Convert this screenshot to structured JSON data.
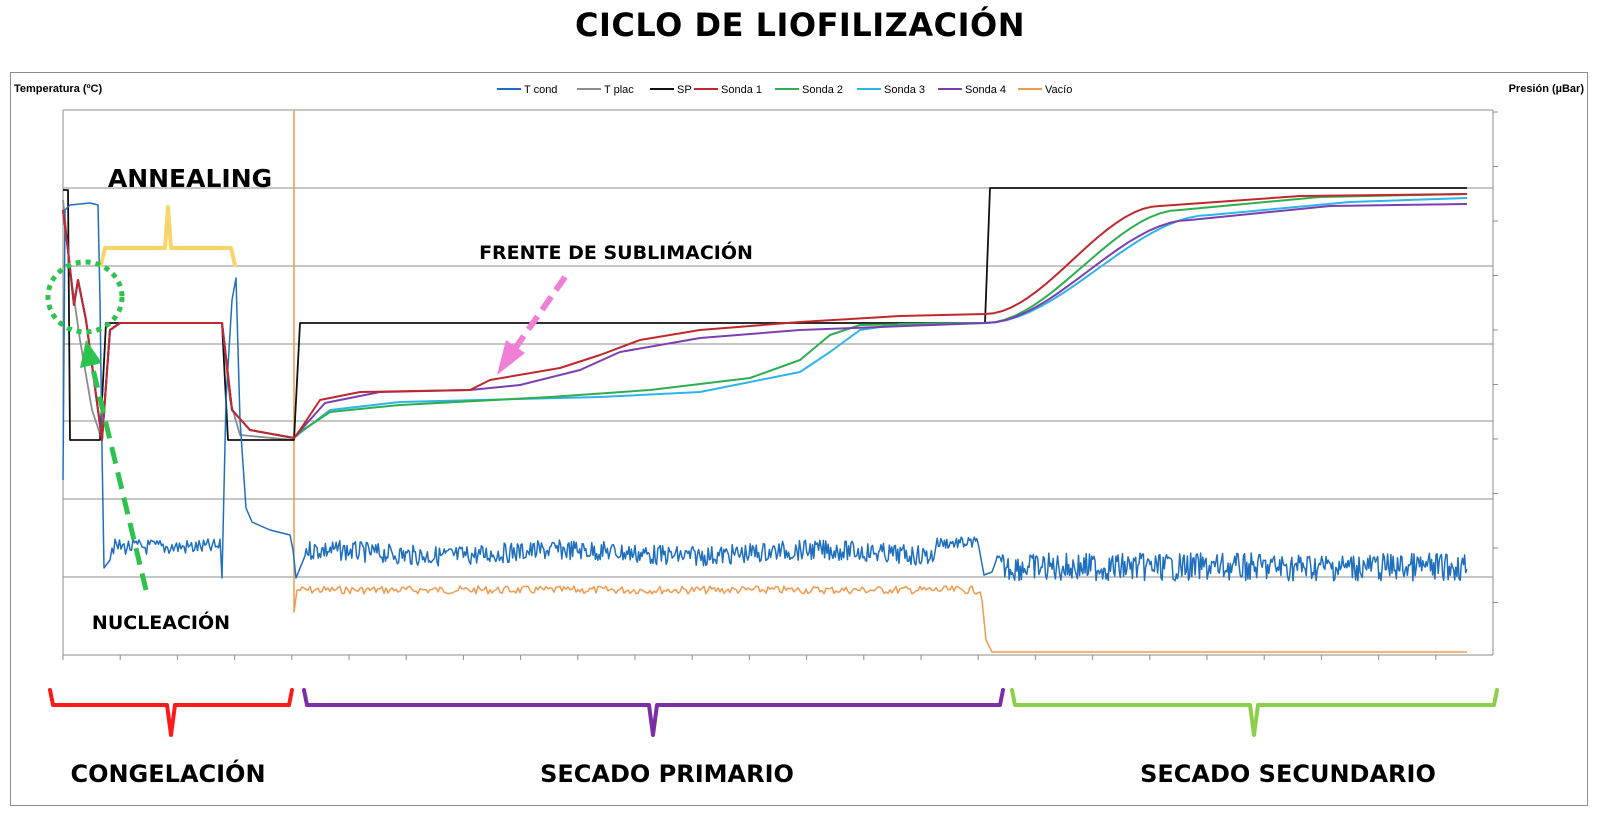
{
  "title": "CICLO DE LIOFILIZACIÓN",
  "chart_data": {
    "type": "line",
    "title": "CICLO DE LIOFILIZACIÓN",
    "ylabel_left": "Temperatura (ºC)",
    "ylabel_right": "Presión (µBar)",
    "grid": "horizontal",
    "legend_position": "top",
    "series": [
      {
        "name": "T cond",
        "color": "#1f6fbf"
      },
      {
        "name": "T plac",
        "color": "#8c8c8c"
      },
      {
        "name": "SP",
        "color": "#111111"
      },
      {
        "name": "Sonda 1",
        "color": "#c0282d"
      },
      {
        "name": "Sonda 2",
        "color": "#2eae4f"
      },
      {
        "name": "Sonda 3",
        "color": "#2fb4ea"
      },
      {
        "name": "Sonda 4",
        "color": "#7b3fb0"
      },
      {
        "name": "Vacío",
        "color": "#f39a4c"
      }
    ]
  },
  "annotations": {
    "annealing": "ANNEALING",
    "frente": "FRENTE DE SUBLIMACIÓN",
    "nucleacion": "NUCLEACIÓN"
  },
  "phases": [
    {
      "label": "CONGELACIÓN",
      "color": "#ff1a1a"
    },
    {
      "label": "SECADO PRIMARIO",
      "color": "#7a2fa8"
    },
    {
      "label": "SECADO SECUNDARIO",
      "color": "#8ccf4a"
    }
  ],
  "colors": {
    "annealing_bracket": "#f7d56b",
    "frente_arrow": "#f07fd6",
    "nucleation_marker": "#2ec24e"
  }
}
